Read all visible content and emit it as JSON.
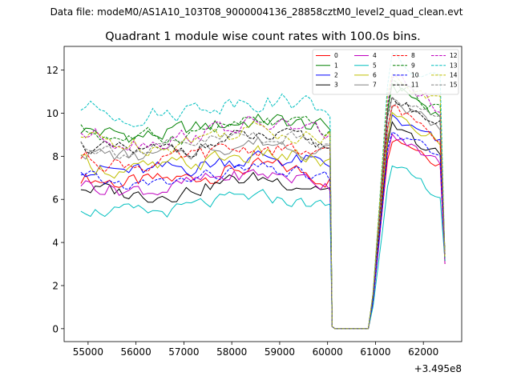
{
  "suptitle": "Data file: modeM0/AS1A10_103T08_9000004136_28858cztM0_level2_quad_clean.evt",
  "chart_data": {
    "type": "line",
    "title": "Quadrant 1 module wise count rates with 100.0s bins.",
    "xlabel": "",
    "ylabel": "",
    "x_offset_label": "+3.495e8",
    "xlim": [
      54500,
      62800
    ],
    "ylim": [
      -0.6,
      13.1
    ],
    "xticks": [
      55000,
      56000,
      57000,
      58000,
      59000,
      60000,
      61000,
      62000
    ],
    "xtick_labels": [
      "55000",
      "56000",
      "57000",
      "58000",
      "59000",
      "60000",
      "61000",
      "62000"
    ],
    "yticks": [
      0,
      2,
      4,
      6,
      8,
      10,
      12
    ],
    "ytick_labels": [
      "0",
      "2",
      "4",
      "6",
      "8",
      "10",
      "12"
    ],
    "legend_location": "top-right",
    "legend_columns": 4,
    "gap": {
      "start": 60095,
      "end": 60895
    },
    "x_start": 54850,
    "x_step": 100,
    "x_end": 62450,
    "end_value": 3.0,
    "series": [
      {
        "name": "0",
        "color": "#ff0000",
        "dash": "solid",
        "base_active": 7.1,
        "base_recovery": 7.8,
        "variation": 0.45
      },
      {
        "name": "1",
        "color": "#008000",
        "dash": "solid",
        "base_active": 9.3,
        "base_recovery": 9.9,
        "variation": 0.45
      },
      {
        "name": "2",
        "color": "#0000ff",
        "dash": "solid",
        "base_active": 7.6,
        "base_recovery": 8.4,
        "variation": 0.45
      },
      {
        "name": "3",
        "color": "#000000",
        "dash": "solid",
        "base_active": 6.6,
        "base_recovery": 7.9,
        "variation": 0.4
      },
      {
        "name": "4",
        "color": "#bf00bf",
        "dash": "solid",
        "base_active": 6.8,
        "base_recovery": 7.6,
        "variation": 0.4
      },
      {
        "name": "5",
        "color": "#00bfbf",
        "dash": "solid",
        "base_active": 5.7,
        "base_recovery": 6.1,
        "variation": 0.35
      },
      {
        "name": "6",
        "color": "#bfbf00",
        "dash": "solid",
        "base_active": 7.7,
        "base_recovery": 8.6,
        "variation": 0.45
      },
      {
        "name": "7",
        "color": "#808080",
        "dash": "solid",
        "base_active": 8.3,
        "base_recovery": 9.2,
        "variation": 0.4
      },
      {
        "name": "8",
        "color": "#ff0000",
        "dash": "dashed",
        "base_active": 8.0,
        "base_recovery": 8.9,
        "variation": 0.4
      },
      {
        "name": "9",
        "color": "#008000",
        "dash": "dashed",
        "base_active": 9.2,
        "base_recovery": 10.1,
        "variation": 0.4
      },
      {
        "name": "10",
        "color": "#0000ff",
        "dash": "dashed",
        "base_active": 7.0,
        "base_recovery": 7.8,
        "variation": 0.35
      },
      {
        "name": "11",
        "color": "#000000",
        "dash": "dashed",
        "base_active": 8.5,
        "base_recovery": 9.4,
        "variation": 0.4
      },
      {
        "name": "12",
        "color": "#bf00bf",
        "dash": "dashed",
        "base_active": 9.1,
        "base_recovery": 10.2,
        "variation": 0.45
      },
      {
        "name": "13",
        "color": "#00bfbf",
        "dash": "dashed",
        "base_active": 10.3,
        "base_recovery": 11.2,
        "variation": 0.45
      },
      {
        "name": "14",
        "color": "#bfbf00",
        "dash": "dashed",
        "base_active": 8.9,
        "base_recovery": 10.4,
        "variation": 0.45
      },
      {
        "name": "15",
        "color": "#808080",
        "dash": "dashed",
        "base_active": 8.6,
        "base_recovery": 9.6,
        "variation": 0.4
      }
    ]
  }
}
